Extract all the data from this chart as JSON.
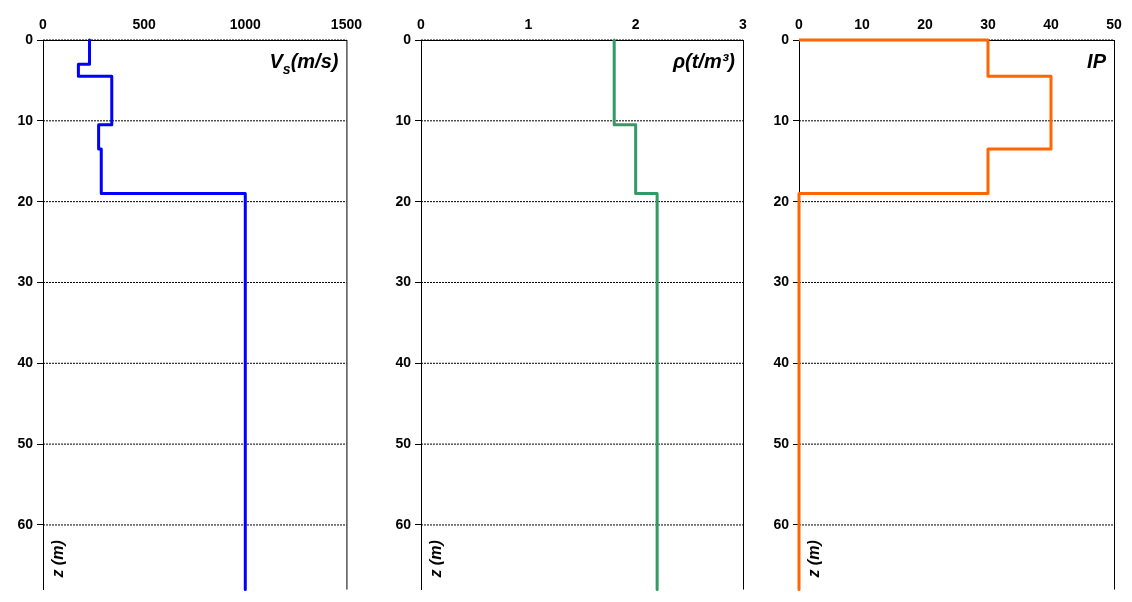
{
  "chart_data": [
    {
      "type": "line",
      "xlabel": "V$_{s}$(m/s)",
      "ylabel": "z (m)",
      "xlim": [
        0,
        1500
      ],
      "xticks": [
        0,
        500,
        1000,
        1500
      ],
      "ylim": [
        68,
        0
      ],
      "yticks": [
        0,
        10,
        20,
        30,
        40,
        50,
        60
      ],
      "grid": "y",
      "marker": "none",
      "line_style": "solid",
      "series": [
        {
          "color": "#0000ff",
          "x": [
            230,
            230,
            175,
            175,
            340,
            340,
            275,
            275,
            288,
            288,
            1000,
            1000
          ],
          "values": [
            0,
            3,
            3,
            4.5,
            4.5,
            10.5,
            10.5,
            13.5,
            13.5,
            19,
            19,
            68
          ]
        }
      ]
    },
    {
      "type": "line",
      "xlabel": "ρ(t/m³)",
      "ylabel": "z (m)",
      "xlim": [
        0,
        3
      ],
      "xticks": [
        0,
        1,
        2,
        3
      ],
      "ylim": [
        68,
        0
      ],
      "yticks": [
        0,
        10,
        20,
        30,
        40,
        50,
        60
      ],
      "grid": "y",
      "marker": "none",
      "line_style": "solid",
      "series": [
        {
          "color": "#339966",
          "x": [
            1.8,
            1.8,
            2,
            2,
            2.2,
            2.2
          ],
          "values": [
            0,
            10.5,
            10.5,
            19,
            19,
            68
          ]
        }
      ]
    },
    {
      "type": "line",
      "xlabel": "IP",
      "ylabel": "z (m)",
      "xlim": [
        0,
        50
      ],
      "xticks": [
        0,
        10,
        20,
        30,
        40,
        50
      ],
      "ylim": [
        68,
        0
      ],
      "yticks": [
        0,
        10,
        20,
        30,
        40,
        50,
        60
      ],
      "grid": "y",
      "marker": "none",
      "line_style": "solid",
      "series": [
        {
          "color": "#ff6600",
          "x": [
            0,
            30,
            30,
            40,
            40,
            30,
            30,
            0,
            0
          ],
          "values": [
            0,
            0,
            4.5,
            4.5,
            13.5,
            13.5,
            19,
            19,
            68
          ]
        }
      ]
    }
  ]
}
